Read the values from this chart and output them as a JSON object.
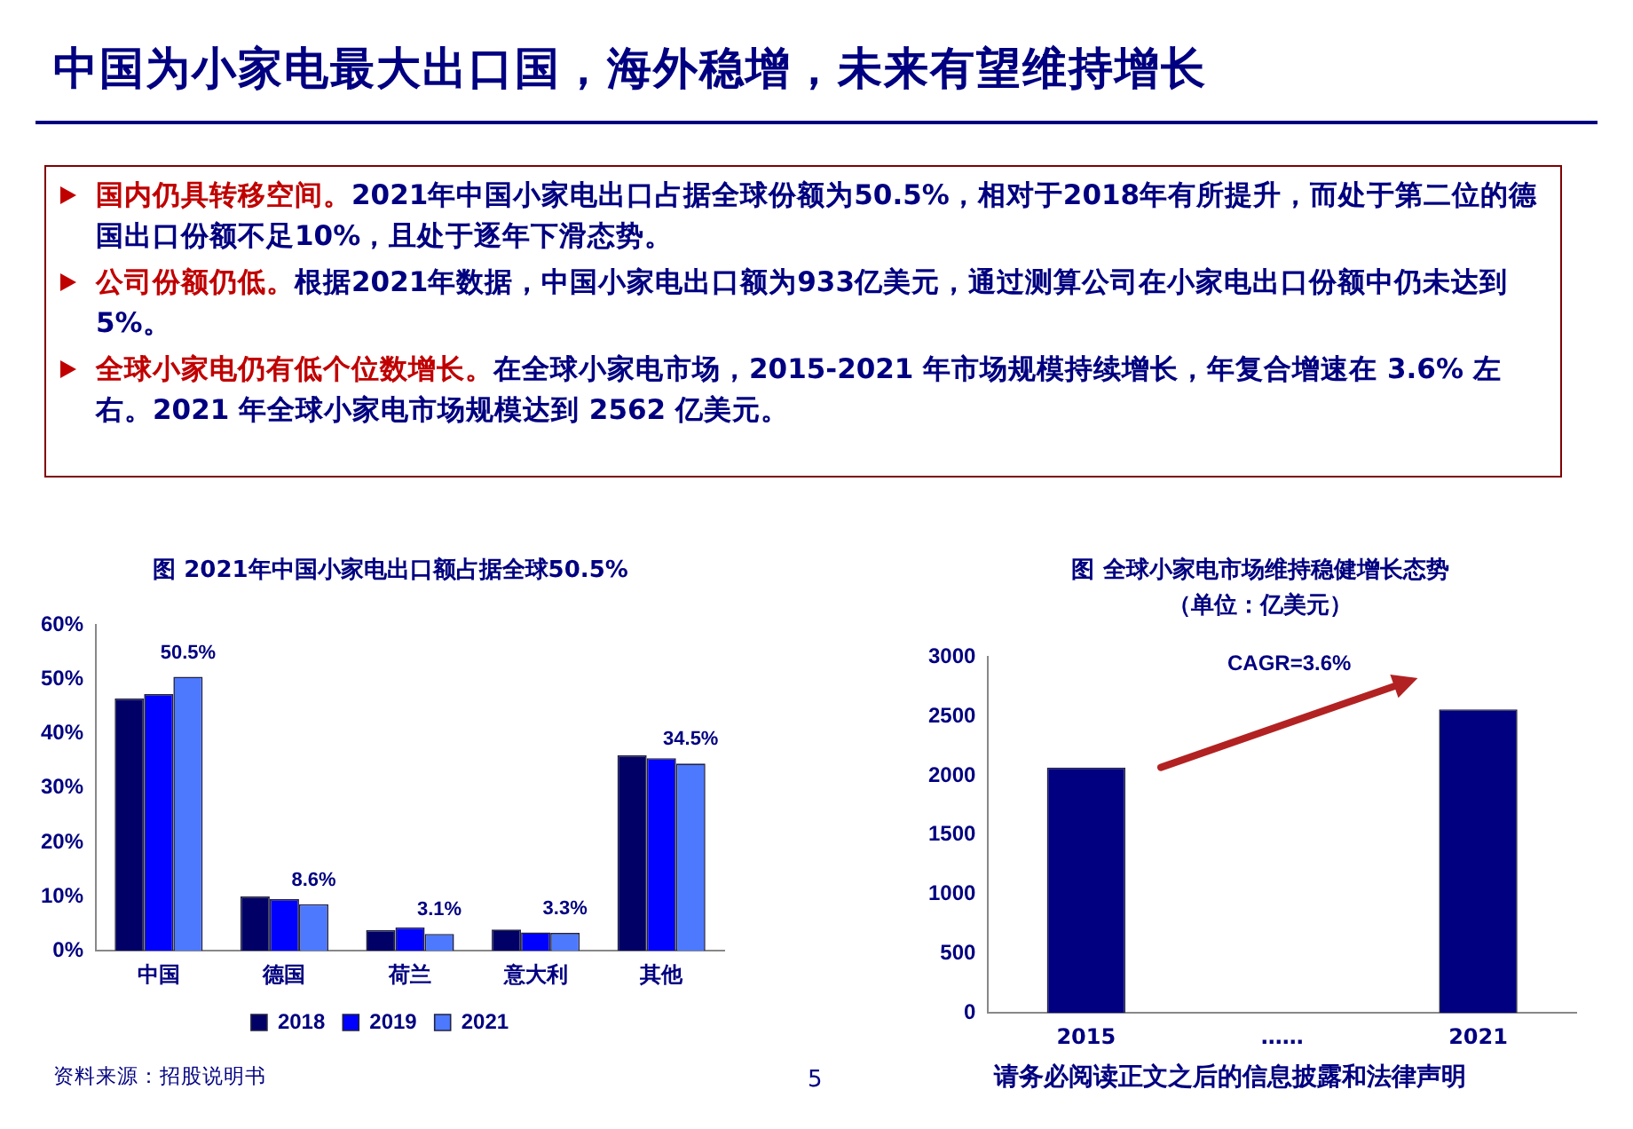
{
  "chart_data": [
    {
      "type": "other",
      "title": "中国为小家电最大出口国，海外稳增，未来有望维持增长",
      "annotations": [
        "国内仍具转移空间。",
        "2021年中国小家电出口占据全球份额为50.5%，相对于2018年有所提升，而处于第二位的德国出口份额不足10%，且处于逐年下滑态势。",
        "公司份额仍低。",
        "根据2021年数据，中国小家电出口额为933亿美元，通过测算公司在小家电出口份额中仍未达到5%。",
        "全球小家电仍有低个位数增长。",
        "在全球小家电市场，2015-2021 年市场规模持续增长，年复合增速在 3.6% 左右。2021 年全球小家电市场规模达到 2562 亿美元。",
        "资料来源：招股说明书",
        "5",
        "请务必阅读正文之后的信息披露和法律声明"
      ]
    },
    {
      "type": "bar",
      "title": "图  2021年中国小家电出口额占据全球50.5%",
      "categories": [
        "中国",
        "德国",
        "荷兰",
        "意大利",
        "其他"
      ],
      "series": [
        {
          "name": "2018",
          "color": "#000066",
          "values": [
            46.5,
            10,
            3.8,
            3.9,
            36
          ]
        },
        {
          "name": "2019",
          "color": "#0000ff",
          "values": [
            47.3,
            9.5,
            4.3,
            3.4,
            35.5
          ]
        },
        {
          "name": "2021",
          "color": "#4d79ff",
          "values": [
            50.5,
            8.6,
            3.1,
            3.3,
            34.5
          ],
          "value_labels": [
            "50.5%",
            "8.6%",
            "3.1%",
            "3.3%",
            "34.5%"
          ]
        }
      ],
      "ylim": [
        0,
        60
      ],
      "yticks": [
        {
          "value": 0,
          "label": "0%"
        },
        {
          "value": 10,
          "label": "10%"
        },
        {
          "value": 20,
          "label": "20%"
        },
        {
          "value": 30,
          "label": "30%"
        },
        {
          "value": 40,
          "label": "40%"
        },
        {
          "value": 50,
          "label": "50%"
        },
        {
          "value": 60,
          "label": "60%"
        }
      ],
      "grid": false,
      "legend": "bottom"
    },
    {
      "type": "bar",
      "title": "图  全球小家电市场维持稳健增长态势",
      "subtitle": "（单位：亿美元）",
      "categories": [
        "2015",
        "……",
        "2021"
      ],
      "values": [
        2070,
        null,
        2560
      ],
      "color": "#000080",
      "ylim": [
        0,
        3000
      ],
      "yticks": [
        0,
        500,
        1000,
        1500,
        2000,
        2500,
        3000
      ],
      "annotations": [
        "CAGR=3.6%"
      ],
      "grid": false,
      "legend": false
    }
  ]
}
